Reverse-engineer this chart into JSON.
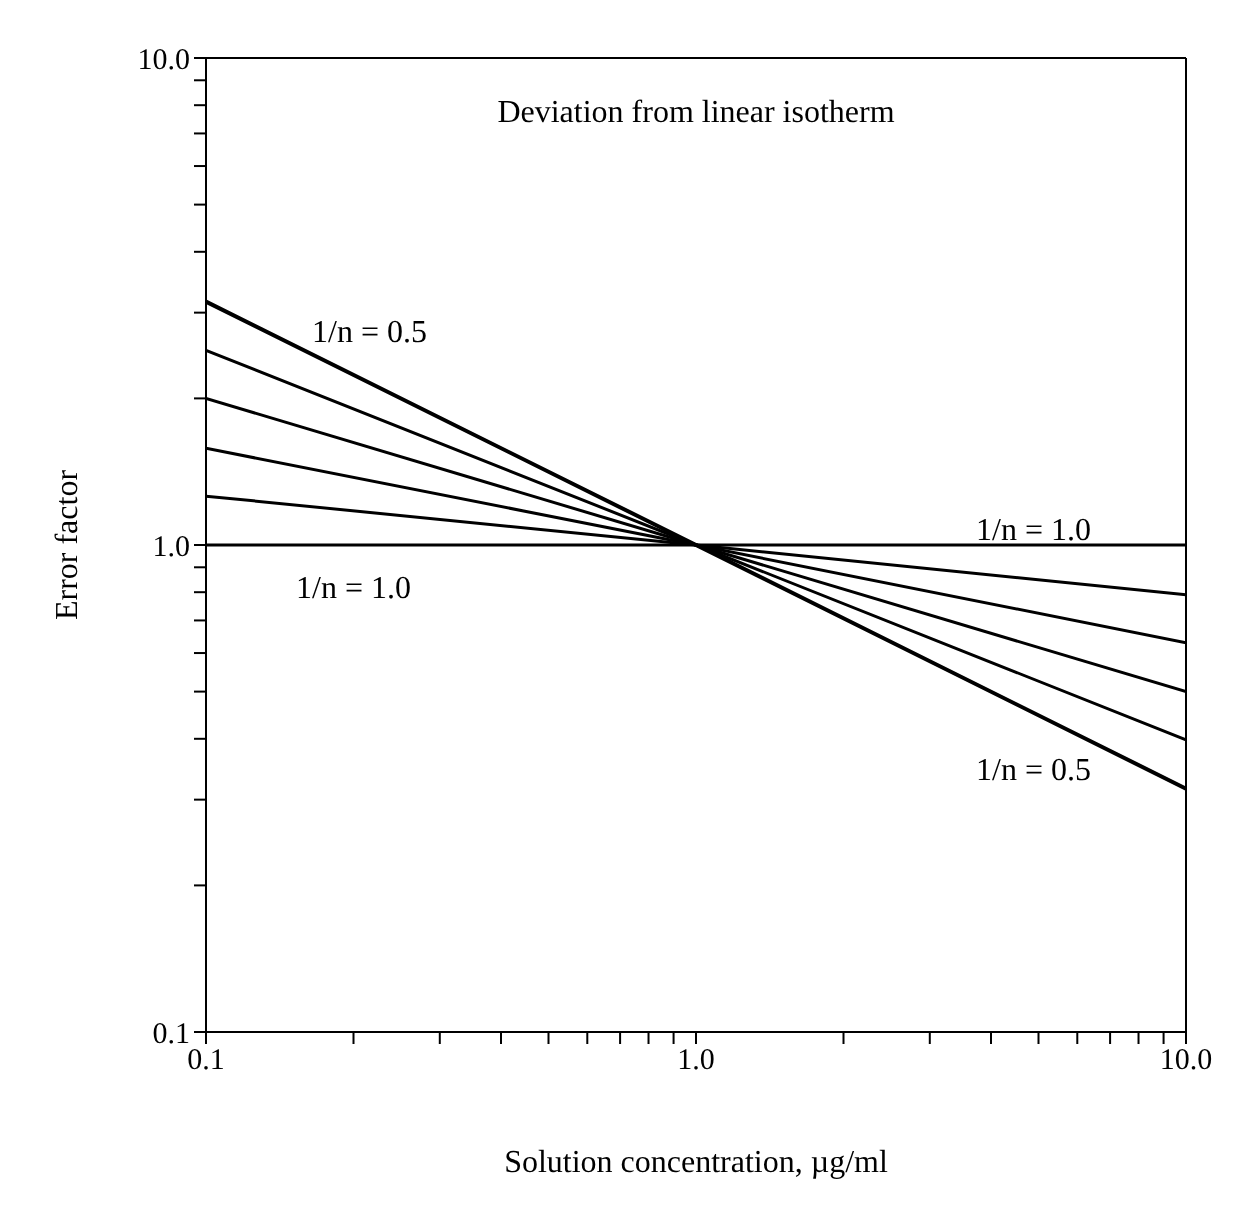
{
  "chart_data": {
    "type": "line",
    "title": "Deviation from linear isotherm",
    "xlabel": "Solution concentration, µg/ml",
    "ylabel": "Error factor",
    "log": "xy",
    "x": [
      0.1,
      1,
      10
    ],
    "series": [
      {
        "color": "#000000",
        "values": [
          3.16,
          1,
          0.316
        ]
      },
      {
        "color": "#000000",
        "values": [
          2.51,
          1,
          0.398
        ]
      },
      {
        "color": "#000000",
        "values": [
          2.0,
          1,
          0.5
        ]
      },
      {
        "color": "#000000",
        "values": [
          1.58,
          1,
          0.63
        ]
      },
      {
        "color": "#000000",
        "values": [
          1.26,
          1,
          0.79
        ]
      },
      {
        "color": "#000000",
        "values": [
          1,
          1,
          1
        ]
      }
    ],
    "xlim": [
      0.1,
      10
    ],
    "ylim": [
      0.1,
      10
    ],
    "xticks": [
      0.1,
      {
        "value": 0.2,
        "label": null
      },
      {
        "value": 0.3,
        "label": null
      },
      {
        "value": 0.4,
        "label": null
      },
      {
        "value": 0.5,
        "label": null
      },
      {
        "value": 0.6,
        "label": null
      },
      {
        "value": 0.7,
        "label": null
      },
      {
        "value": 0.8,
        "label": null
      },
      {
        "value": 0.9,
        "label": null
      },
      {
        "value": 1,
        "label": "1.0"
      },
      {
        "value": 2,
        "label": null
      },
      {
        "value": 3,
        "label": null
      },
      {
        "value": 4,
        "label": null
      },
      {
        "value": 5,
        "label": null
      },
      {
        "value": 6,
        "label": null
      },
      {
        "value": 7,
        "label": null
      },
      {
        "value": 8,
        "label": null
      },
      {
        "value": 9,
        "label": null
      },
      {
        "value": 10,
        "label": "10.0"
      }
    ],
    "yticks": [
      0.1,
      {
        "value": 0.2,
        "label": null
      },
      {
        "value": 0.3,
        "label": null
      },
      {
        "value": 0.4,
        "label": null
      },
      {
        "value": 0.5,
        "label": null
      },
      {
        "value": 0.6,
        "label": null
      },
      {
        "value": 0.7,
        "label": null
      },
      {
        "value": 0.8,
        "label": null
      },
      {
        "value": 0.9,
        "label": null
      },
      {
        "value": 1,
        "label": "1.0"
      },
      {
        "value": 2,
        "label": null
      },
      {
        "value": 3,
        "label": null
      },
      {
        "value": 4,
        "label": null
      },
      {
        "value": 5,
        "label": null
      },
      {
        "value": 6,
        "label": null
      },
      {
        "value": 7,
        "label": null
      },
      {
        "value": 8,
        "label": null
      },
      {
        "value": 9,
        "label": null
      },
      {
        "value": 10,
        "label": "10.0"
      }
    ],
    "annotations": [
      "1/n = 0.5",
      "1/n = 1.0",
      "1/n = 1.0",
      "1/n = 0.5"
    ],
    "marker": "none",
    "line_style": "solid",
    "grid": false
  }
}
